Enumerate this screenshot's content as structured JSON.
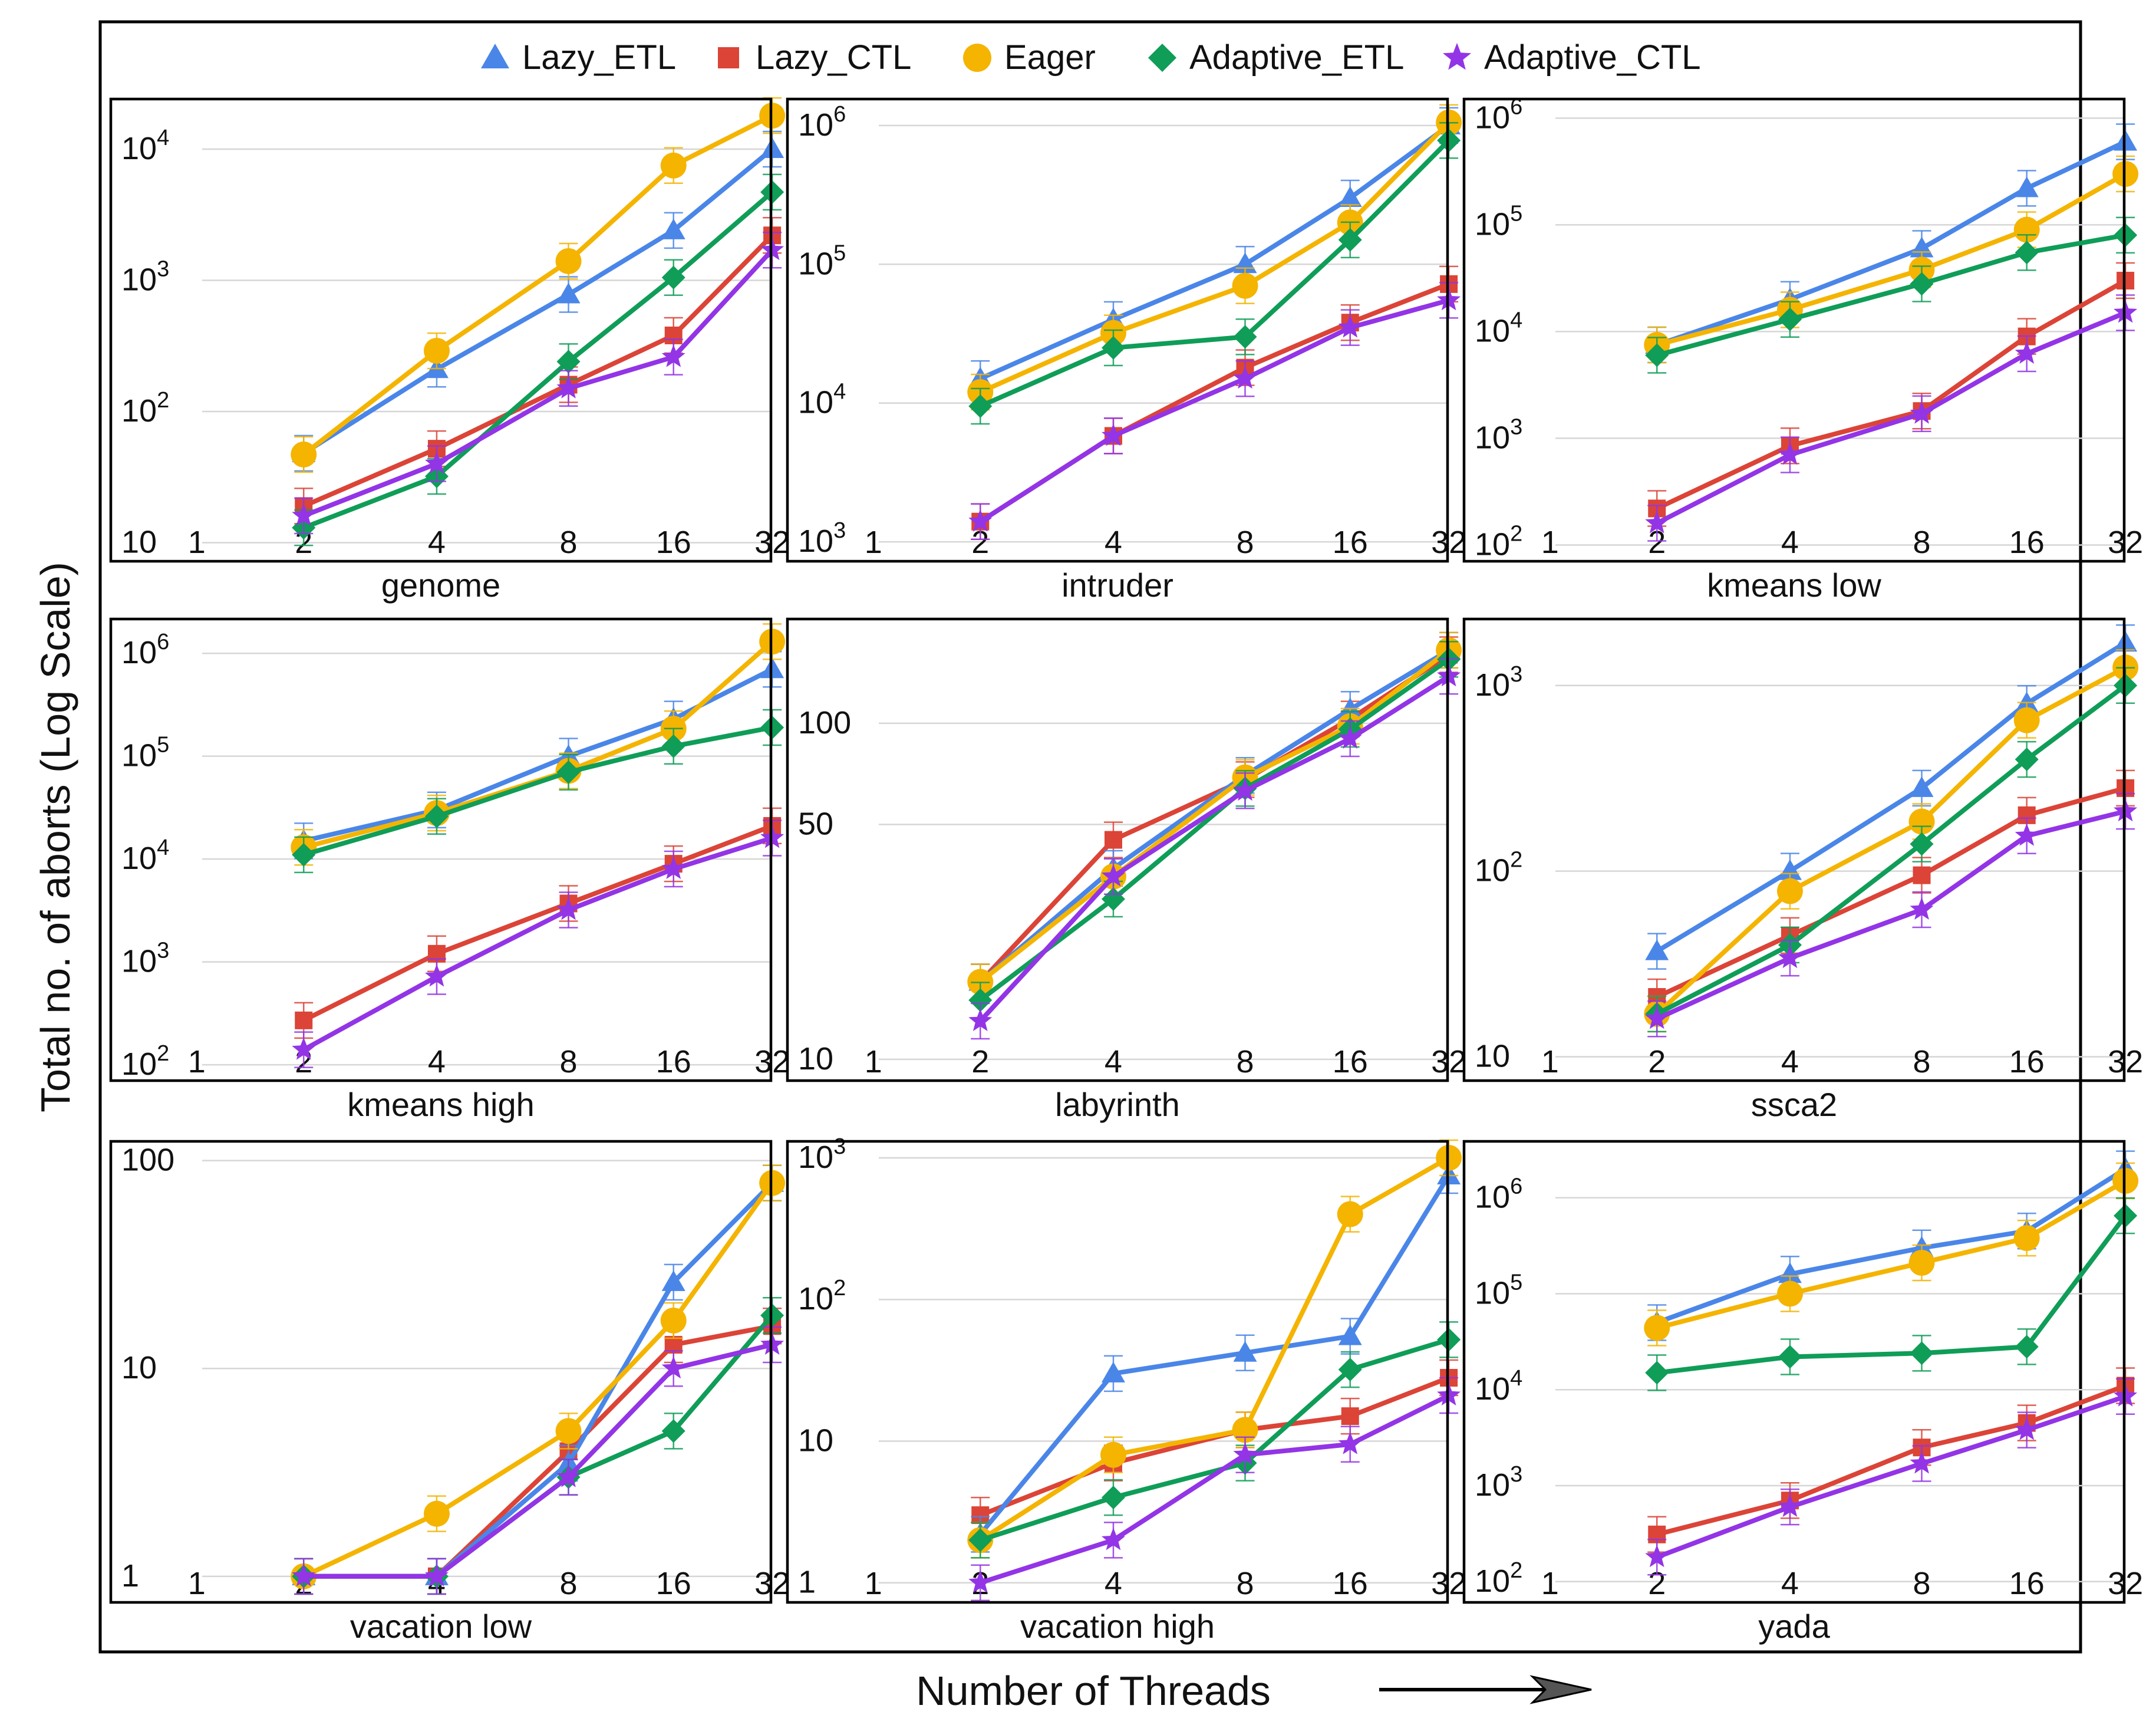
{
  "chart_data": {
    "type": "line",
    "y_axis_title": "Total no. of aborts (Log Scale)",
    "x_axis_title": "Number of Threads",
    "y_scale": "log",
    "legend_position": "top-center",
    "x_ticks": [
      "1",
      "2",
      "4",
      "8",
      "16",
      "32"
    ],
    "series_meta": [
      {
        "name": "Lazy_ETL",
        "color": "#4a86e8",
        "marker": "triangle"
      },
      {
        "name": "Lazy_CTL",
        "color": "#db4437",
        "marker": "square"
      },
      {
        "name": "Eager",
        "color": "#f4b400",
        "marker": "circle"
      },
      {
        "name": "Adaptive_ETL",
        "color": "#0f9d58",
        "marker": "diamond"
      },
      {
        "name": "Adaptive_CTL",
        "color": "#9334e6",
        "marker": "star"
      }
    ],
    "panels": [
      {
        "title": "genome",
        "ylim": [
          8,
          20000
        ],
        "y_ticks": [
          {
            "v": 10,
            "b": "10"
          },
          {
            "v": 100,
            "b": "10",
            "e": "2"
          },
          {
            "v": 1000,
            "b": "10",
            "e": "3"
          },
          {
            "v": 10000,
            "b": "10",
            "e": "4"
          }
        ],
        "series": [
          [
            48,
            210,
            780,
            2400,
            10000
          ],
          [
            19,
            52,
            160,
            380,
            2200
          ],
          [
            47,
            290,
            1400,
            7500,
            18000
          ],
          [
            13,
            32,
            240,
            1050,
            4700
          ],
          [
            16,
            40,
            150,
            260,
            1700
          ]
        ]
      },
      {
        "title": "intruder",
        "ylim": [
          800,
          1300000
        ],
        "y_ticks": [
          {
            "v": 1000,
            "b": "10",
            "e": "3"
          },
          {
            "v": 10000,
            "b": "10",
            "e": "4"
          },
          {
            "v": 100000,
            "b": "10",
            "e": "5"
          },
          {
            "v": 1000000,
            "b": "10",
            "e": "6"
          }
        ],
        "series": [
          [
            15000,
            40000,
            100000,
            300000,
            1000000
          ],
          [
            1400,
            5800,
            18000,
            38000,
            72000
          ],
          [
            12000,
            32000,
            70000,
            200000,
            1050000
          ],
          [
            9500,
            25000,
            30000,
            150000,
            780000
          ],
          [
            1400,
            5800,
            15000,
            35000,
            55000
          ]
        ]
      },
      {
        "title": "kmeans low",
        "ylim": [
          80,
          1200000
        ],
        "y_ticks": [
          {
            "v": 100,
            "b": "10",
            "e": "2"
          },
          {
            "v": 1000,
            "b": "10",
            "e": "3"
          },
          {
            "v": 10000,
            "b": "10",
            "e": "4"
          },
          {
            "v": 100000,
            "b": "10",
            "e": "5"
          },
          {
            "v": 1000000,
            "b": "10",
            "e": "6"
          }
        ],
        "series": [
          [
            7500,
            20000,
            60000,
            220000,
            600000
          ],
          [
            220,
            850,
            1800,
            9000,
            30000
          ],
          [
            7500,
            16000,
            38000,
            90000,
            300000
          ],
          [
            6000,
            13000,
            28000,
            55000,
            80000
          ],
          [
            160,
            700,
            1700,
            6200,
            15000
          ]
        ]
      },
      {
        "title": "kmeans high",
        "ylim": [
          80,
          1700000
        ],
        "y_ticks": [
          {
            "v": 100,
            "b": "10",
            "e": "2"
          },
          {
            "v": 1000,
            "b": "10",
            "e": "3"
          },
          {
            "v": 10000,
            "b": "10",
            "e": "4"
          },
          {
            "v": 100000,
            "b": "10",
            "e": "5"
          },
          {
            "v": 1000000,
            "b": "10",
            "e": "6"
          }
        ],
        "series": [
          [
            15000,
            30000,
            100000,
            230000,
            700000
          ],
          [
            270,
            1200,
            3700,
            9000,
            21000
          ],
          [
            13000,
            28000,
            72000,
            185000,
            1300000
          ],
          [
            11000,
            26000,
            70000,
            125000,
            190000
          ],
          [
            140,
            720,
            3200,
            8000,
            16000
          ]
        ]
      },
      {
        "title": "labyrinth",
        "ylim": [
          9,
          190
        ],
        "y_ticks": [
          {
            "v": 10,
            "b": "10"
          },
          {
            "v": 50,
            "b": "50"
          },
          {
            "v": 100,
            "b": "100"
          }
        ],
        "series": [
          [
            17,
            37,
            70,
            110,
            165
          ],
          [
            17,
            45,
            68,
            103,
            160
          ],
          [
            17,
            35,
            69,
            98,
            165
          ],
          [
            15,
            30,
            64,
            96,
            155
          ],
          [
            13,
            35,
            63,
            90,
            138
          ]
        ]
      },
      {
        "title": "ssca2",
        "ylim": [
          8,
          2000
        ],
        "y_ticks": [
          {
            "v": 10,
            "b": "10"
          },
          {
            "v": 100,
            "b": "10",
            "e": "2"
          },
          {
            "v": 1000,
            "b": "10",
            "e": "3"
          }
        ],
        "series": [
          [
            37,
            100,
            280,
            800,
            1700
          ],
          [
            21,
            45,
            95,
            200,
            280
          ],
          [
            17,
            78,
            185,
            650,
            1250
          ],
          [
            17,
            40,
            140,
            400,
            1000
          ],
          [
            16,
            34,
            62,
            155,
            210
          ]
        ]
      },
      {
        "title": "vacation low",
        "ylim": [
          0.8,
          110
        ],
        "y_ticks": [
          {
            "v": 1,
            "b": "1"
          },
          {
            "v": 10,
            "b": "10"
          },
          {
            "v": 100,
            "b": "100"
          }
        ],
        "series": [
          [
            1,
            1,
            3.5,
            26,
            78
          ],
          [
            1,
            1,
            4,
            13,
            16
          ],
          [
            1,
            2,
            5,
            17,
            78
          ],
          [
            1,
            1,
            3,
            5,
            18
          ],
          [
            1,
            1,
            3,
            10,
            13
          ]
        ]
      },
      {
        "title": "vacation high",
        "ylim": [
          0.8,
          1100
        ],
        "y_ticks": [
          {
            "v": 1,
            "b": "1"
          },
          {
            "v": 10,
            "b": "10"
          },
          {
            "v": 100,
            "b": "10",
            "e": "2"
          },
          {
            "v": 1000,
            "b": "10",
            "e": "3"
          }
        ],
        "series": [
          [
            2.2,
            30,
            42,
            55,
            750
          ],
          [
            3,
            7,
            12,
            15,
            28
          ],
          [
            2,
            8,
            12,
            400,
            1000
          ],
          [
            2,
            4,
            7,
            32,
            52
          ],
          [
            1,
            2,
            8,
            9.5,
            21
          ]
        ]
      },
      {
        "title": "yada",
        "ylim": [
          70,
          3000000
        ],
        "y_ticks": [
          {
            "v": 100,
            "b": "10",
            "e": "2"
          },
          {
            "v": 1000,
            "b": "10",
            "e": "3"
          },
          {
            "v": 10000,
            "b": "10",
            "e": "4"
          },
          {
            "v": 100000,
            "b": "10",
            "e": "5"
          },
          {
            "v": 1000000,
            "b": "10",
            "e": "6"
          }
        ],
        "series": [
          [
            50000,
            160000,
            300000,
            450000,
            2000000
          ],
          [
            310,
            700,
            2500,
            4500,
            11000
          ],
          [
            44000,
            100000,
            210000,
            380000,
            1500000
          ],
          [
            15000,
            22000,
            24000,
            28000,
            650000
          ],
          [
            180,
            600,
            1700,
            3800,
            8500
          ]
        ]
      }
    ]
  }
}
